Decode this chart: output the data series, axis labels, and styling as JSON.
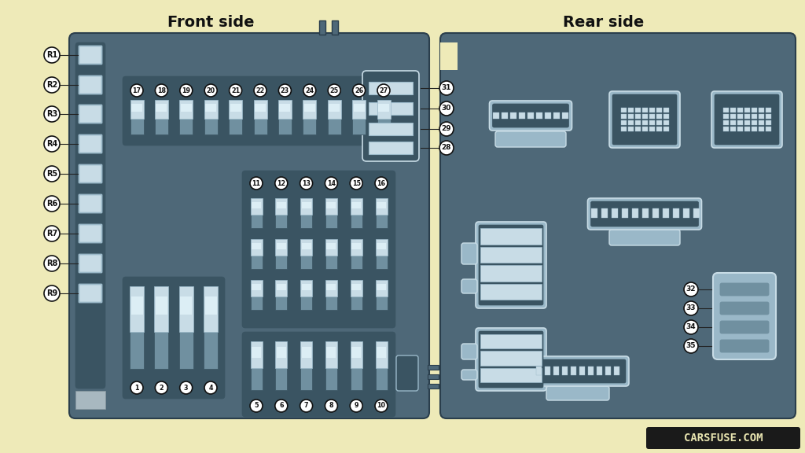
{
  "bg_color": "#eeeab8",
  "title_front": "Front side",
  "title_rear": "Rear side",
  "panel_color": "#4e6878",
  "panel_dark": "#3a5462",
  "panel_light": "#5a7888",
  "fuse_light": "#c8dce6",
  "fuse_med": "#9ab8c8",
  "fuse_dark": "#7090a0",
  "conn_outline": "#b8ccd4",
  "relay_labels": [
    "R1",
    "R2",
    "R3",
    "R4",
    "R5",
    "R6",
    "R7",
    "R8",
    "R9"
  ],
  "fuse_row1": [
    "17",
    "18",
    "19",
    "20",
    "21",
    "22",
    "23",
    "24",
    "25",
    "26",
    "27"
  ],
  "fuse_row2": [
    "11",
    "12",
    "13",
    "14",
    "15",
    "16"
  ],
  "fuse_row3": [
    "5",
    "6",
    "7",
    "8",
    "9",
    "10"
  ],
  "fuse_row4": [
    "1",
    "2",
    "3",
    "4"
  ],
  "right_labels": [
    "31",
    "30",
    "29",
    "28"
  ],
  "rear_labels": [
    "32",
    "33",
    "34",
    "35"
  ],
  "wm_bg": "#1a1a1a",
  "wm_fg": "#e8e4b0"
}
